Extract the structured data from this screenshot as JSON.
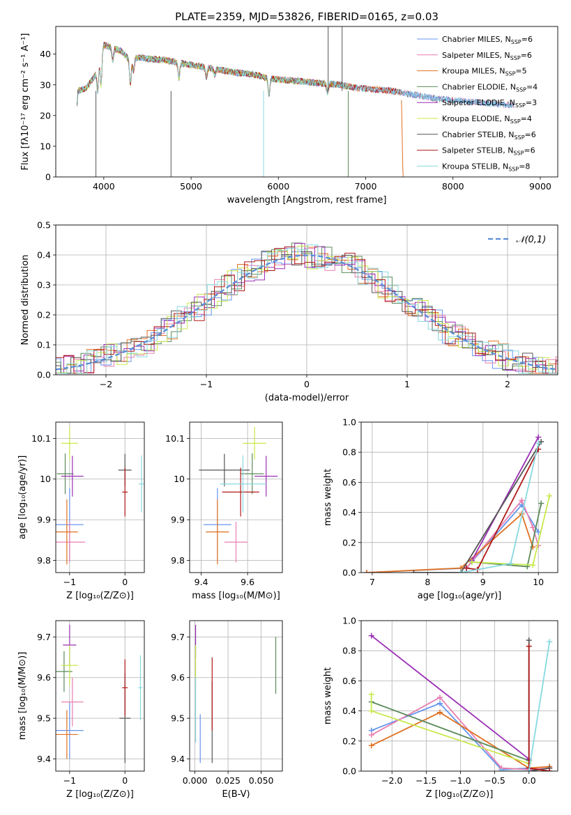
{
  "figure_title": "PLATE=2359, MJD=53826, FIBERID=0165, z=0.03",
  "colors": {
    "c1": "#6495ed",
    "c2": "#e87fb0",
    "c3": "#e07020",
    "c4": "#5a8a5a",
    "c5": "#9a2fb5",
    "c6": "#c8e84a",
    "c7": "#555555",
    "c8": "#b01818",
    "c9": "#88d8e0",
    "gauss": "#5a8fd8",
    "grid": "#b0b0b0"
  },
  "chart_data": [
    {
      "id": "spectrum",
      "type": "line",
      "xlabel": "wavelength [Angstrom, rest frame]",
      "ylabel": "Flux [fλ10⁻¹⁷ erg cm⁻² s⁻¹ A⁻¹]",
      "xlim": [
        3450,
        9200
      ],
      "ylim": [
        0,
        49
      ],
      "xticks": [
        4000,
        5000,
        6000,
        7000,
        8000,
        9000
      ],
      "yticks": [
        0,
        10,
        20,
        30,
        40
      ],
      "grid": false,
      "legend": "upper right",
      "series": [
        {
          "name": "Chabrier MILES, N",
          "sub": "SSP",
          "suffix": "=6"
        },
        {
          "name": "Salpeter MILES, N",
          "sub": "SSP",
          "suffix": "=6"
        },
        {
          "name": "Kroupa MILES, N",
          "sub": "SSP",
          "suffix": "=5"
        },
        {
          "name": "Chabrier ELODIE, N",
          "sub": "SSP",
          "suffix": "=4"
        },
        {
          "name": "Salpeter ELODIE, N",
          "sub": "SSP",
          "suffix": "=3"
        },
        {
          "name": "Kroupa ELODIE, N",
          "sub": "SSP",
          "suffix": "=4"
        },
        {
          "name": "Chabrier STELIB, N",
          "sub": "SSP",
          "suffix": "=6"
        },
        {
          "name": "Salpeter STELIB, N",
          "sub": "SSP",
          "suffix": "=6"
        },
        {
          "name": "Kroupa STELIB, N",
          "sub": "SSP",
          "suffix": "=8"
        }
      ],
      "continuum": [
        [
          3700,
          28
        ],
        [
          3800,
          29
        ],
        [
          3900,
          33
        ],
        [
          4000,
          43
        ],
        [
          4100,
          42
        ],
        [
          4200,
          41
        ],
        [
          4300,
          38
        ],
        [
          4400,
          39
        ],
        [
          4500,
          38.5
        ],
        [
          4700,
          38
        ],
        [
          4900,
          37
        ],
        [
          5100,
          36
        ],
        [
          5300,
          35
        ],
        [
          5500,
          34
        ],
        [
          5700,
          33.5
        ],
        [
          5900,
          32
        ],
        [
          6100,
          31.5
        ],
        [
          6300,
          31
        ],
        [
          6500,
          30.5
        ],
        [
          6700,
          30
        ],
        [
          6900,
          29
        ],
        [
          7100,
          28.5
        ],
        [
          7300,
          28
        ],
        [
          7400,
          27.5
        ],
        [
          7600,
          26.5
        ],
        [
          7800,
          25.5
        ],
        [
          8000,
          25
        ],
        [
          8200,
          24.5
        ],
        [
          8400,
          24
        ],
        [
          8600,
          23.5
        ],
        [
          8700,
          23.5
        ]
      ],
      "dips": [
        [
          3930,
          8
        ],
        [
          3968,
          10
        ],
        [
          4102,
          4
        ],
        [
          4305,
          8
        ],
        [
          4340,
          4
        ],
        [
          4861,
          5
        ],
        [
          5175,
          3
        ],
        [
          5270,
          2
        ],
        [
          5892,
          5
        ],
        [
          6563,
          3
        ]
      ]
    },
    {
      "id": "residuals",
      "type": "histogram",
      "xlabel": "(data-model)/error",
      "ylabel": "Normed distribution",
      "xlim": [
        -2.5,
        2.5
      ],
      "ylim": [
        0,
        0.5
      ],
      "xticks": [
        -2,
        -1,
        0,
        1,
        2
      ],
      "yticks": [
        0.0,
        0.1,
        0.2,
        0.3,
        0.4,
        0.5
      ],
      "grid": true,
      "legend": "upper right",
      "gauss_label": "𝒩(0,1)",
      "bin_width": 0.1,
      "envelope_sigma": 1.0
    },
    {
      "id": "age_vs_Z",
      "type": "scatter",
      "xlabel": "Z [log₁₀(Z/Z⊙)]",
      "ylabel": "age  [log₁₀(age/yr)]",
      "xlim": [
        -1.25,
        0.35
      ],
      "ylim": [
        9.77,
        10.14
      ],
      "xticks": [
        -1,
        0
      ],
      "yticks": [
        9.8,
        9.9,
        10.0,
        10.1
      ],
      "grid": true,
      "points": [
        {
          "x": -1.0,
          "y": 9.888,
          "xerr": 0.25,
          "yerr": 0.09,
          "c": "c1"
        },
        {
          "x": -1.0,
          "y": 9.845,
          "xerr": 0.28,
          "yerr": 0.05,
          "c": "c2"
        },
        {
          "x": -1.05,
          "y": 9.87,
          "xerr": 0.2,
          "yerr": 0.08,
          "c": "c3"
        },
        {
          "x": -1.08,
          "y": 10.013,
          "xerr": 0.15,
          "yerr": 0.05,
          "c": "c4"
        },
        {
          "x": -0.95,
          "y": 10.007,
          "xerr": 0.2,
          "yerr": 0.05,
          "c": "c5"
        },
        {
          "x": -1.0,
          "y": 10.088,
          "xerr": 0.15,
          "yerr": 0.04,
          "c": "c6"
        },
        {
          "x": 0.0,
          "y": 10.022,
          "xerr": 0.12,
          "yerr": 0.04,
          "c": "c7"
        },
        {
          "x": 0.0,
          "y": 9.968,
          "xerr": 0.05,
          "yerr": 0.06,
          "c": "c8"
        },
        {
          "x": 0.3,
          "y": 9.988,
          "xerr": 0.05,
          "yerr": 0.07,
          "c": "c9"
        }
      ]
    },
    {
      "id": "age_vs_mass",
      "type": "scatter",
      "xlabel": "mass [log₁₀(M/M⊙)]",
      "ylabel": "",
      "xlim": [
        9.35,
        9.75
      ],
      "ylim": [
        9.77,
        10.14
      ],
      "xticks": [
        9.4,
        9.6
      ],
      "yticks": [
        9.8,
        9.9,
        10.0,
        10.1
      ],
      "grid": true,
      "points": [
        {
          "x": 9.47,
          "y": 9.888,
          "xerr": 0.06,
          "yerr": 0.09,
          "c": "c1"
        },
        {
          "x": 9.55,
          "y": 9.845,
          "xerr": 0.05,
          "yerr": 0.05,
          "c": "c2"
        },
        {
          "x": 9.47,
          "y": 9.87,
          "xerr": 0.05,
          "yerr": 0.08,
          "c": "c3"
        },
        {
          "x": 9.62,
          "y": 10.013,
          "xerr": 0.05,
          "yerr": 0.05,
          "c": "c4"
        },
        {
          "x": 9.68,
          "y": 10.007,
          "xerr": 0.05,
          "yerr": 0.05,
          "c": "c5"
        },
        {
          "x": 9.63,
          "y": 10.088,
          "xerr": 0.05,
          "yerr": 0.04,
          "c": "c6"
        },
        {
          "x": 9.5,
          "y": 10.022,
          "xerr": 0.11,
          "yerr": 0.04,
          "c": "c7"
        },
        {
          "x": 9.57,
          "y": 9.968,
          "xerr": 0.08,
          "yerr": 0.06,
          "c": "c8"
        },
        {
          "x": 9.58,
          "y": 9.988,
          "xerr": 0.1,
          "yerr": 0.07,
          "c": "c9"
        }
      ]
    },
    {
      "id": "weight_vs_age",
      "type": "line",
      "xlabel": "age  [log₁₀(age/yr)]",
      "ylabel": "mass weight",
      "xlim": [
        6.8,
        10.35
      ],
      "ylim": [
        0,
        1.0
      ],
      "xticks": [
        7,
        8,
        9,
        10
      ],
      "yticks": [
        0.0,
        0.2,
        0.4,
        0.6,
        0.8,
        1.0
      ],
      "grid": true,
      "series": [
        {
          "c": "c1",
          "pts": [
            [
              6.9,
              0.0
            ],
            [
              8.7,
              0.03
            ],
            [
              9.7,
              0.45
            ],
            [
              10.0,
              0.27
            ]
          ]
        },
        {
          "c": "c2",
          "pts": [
            [
              8.7,
              0.03
            ],
            [
              9.7,
              0.48
            ],
            [
              9.9,
              0.3
            ],
            [
              10.0,
              0.18
            ]
          ]
        },
        {
          "c": "c3",
          "pts": [
            [
              6.9,
              0.0
            ],
            [
              8.6,
              0.03
            ],
            [
              9.7,
              0.39
            ],
            [
              9.9,
              0.17
            ]
          ]
        },
        {
          "c": "c4",
          "pts": [
            [
              8.8,
              0.07
            ],
            [
              9.8,
              0.04
            ],
            [
              10.05,
              0.46
            ]
          ]
        },
        {
          "c": "c5",
          "pts": [
            [
              8.8,
              0.08
            ],
            [
              10.0,
              0.9
            ]
          ]
        },
        {
          "c": "c6",
          "pts": [
            [
              8.8,
              0.07
            ],
            [
              9.9,
              0.05
            ],
            [
              10.2,
              0.51
            ]
          ]
        },
        {
          "c": "c7",
          "pts": [
            [
              7.75,
              0.0
            ],
            [
              8.6,
              0.0
            ],
            [
              10.05,
              0.87
            ]
          ]
        },
        {
          "c": "c8",
          "pts": [
            [
              8.7,
              0.03
            ],
            [
              8.9,
              0.02
            ],
            [
              10.0,
              0.82
            ]
          ]
        },
        {
          "c": "c9",
          "pts": [
            [
              8.6,
              0.0
            ],
            [
              9.5,
              0.06
            ],
            [
              10.0,
              0.86
            ]
          ]
        }
      ]
    },
    {
      "id": "mass_vs_Z",
      "type": "scatter",
      "xlabel": "Z [log₁₀(Z/Z⊙)]",
      "ylabel": "mass [log₁₀(M/M⊙)]",
      "xlim": [
        -1.25,
        0.35
      ],
      "ylim": [
        9.37,
        9.74
      ],
      "xticks": [
        -1,
        0
      ],
      "yticks": [
        9.4,
        9.5,
        9.6,
        9.7
      ],
      "grid": true,
      "points": [
        {
          "x": -1.0,
          "y": 9.47,
          "xerr": 0.25,
          "yerr": 0.07,
          "c": "c1"
        },
        {
          "x": -0.95,
          "y": 9.54,
          "xerr": 0.2,
          "yerr": 0.06,
          "c": "c2"
        },
        {
          "x": -1.05,
          "y": 9.46,
          "xerr": 0.2,
          "yerr": 0.06,
          "c": "c3"
        },
        {
          "x": -1.1,
          "y": 9.615,
          "xerr": 0.15,
          "yerr": 0.05,
          "c": "c4"
        },
        {
          "x": -1.0,
          "y": 9.68,
          "xerr": 0.12,
          "yerr": 0.05,
          "c": "c5"
        },
        {
          "x": -1.0,
          "y": 9.63,
          "xerr": 0.15,
          "yerr": 0.05,
          "c": "c6"
        },
        {
          "x": 0.0,
          "y": 9.5,
          "xerr": 0.1,
          "yerr": 0.11,
          "c": "c7"
        },
        {
          "x": 0.0,
          "y": 9.575,
          "xerr": 0.05,
          "yerr": 0.07,
          "c": "c8"
        },
        {
          "x": 0.28,
          "y": 9.575,
          "xerr": 0.04,
          "yerr": 0.08,
          "c": "c9"
        }
      ]
    },
    {
      "id": "mass_vs_ebv",
      "type": "scatter",
      "xlabel": "E(B-V)",
      "ylabel": "",
      "xlim": [
        -0.004,
        0.066
      ],
      "ylim": [
        9.37,
        9.74
      ],
      "xticks": [
        0.0,
        0.025,
        0.05
      ],
      "xticklabels": [
        "0.000",
        "0.025",
        "0.050"
      ],
      "yticks": [
        9.4,
        9.5,
        9.6,
        9.7
      ],
      "grid": true,
      "points": [
        {
          "x": 0.004,
          "y": 9.45,
          "xerr": 0,
          "yerr": 0.06,
          "c": "c1"
        },
        {
          "x": 0.0005,
          "y": 9.69,
          "xerr": 0,
          "yerr": 0.04,
          "c": "c5"
        },
        {
          "x": 0.0005,
          "y": 9.63,
          "xerr": 0,
          "yerr": 0.05,
          "c": "c6"
        },
        {
          "x": 0.0005,
          "y": 9.52,
          "xerr": 0,
          "yerr": 0.08,
          "c": "c9"
        },
        {
          "x": 0.013,
          "y": 9.49,
          "xerr": 0,
          "yerr": 0.1,
          "c": "c7"
        },
        {
          "x": 0.013,
          "y": 9.56,
          "xerr": 0,
          "yerr": 0.09,
          "c": "c8"
        },
        {
          "x": 0.061,
          "y": 9.63,
          "xerr": 0,
          "yerr": 0.07,
          "c": "c4"
        }
      ]
    },
    {
      "id": "weight_vs_Z",
      "type": "line",
      "xlabel": "Z [log₁₀(Z/Z⊙)]",
      "ylabel": "mass weight",
      "xlim": [
        -2.45,
        0.42
      ],
      "ylim": [
        0,
        1.0
      ],
      "xticks": [
        -2.0,
        -1.5,
        -1.0,
        -0.5,
        0.0
      ],
      "xticklabels": [
        "−2.0",
        "−1.5",
        "−1.0",
        "−0.5",
        "0.0"
      ],
      "yticks": [
        0.0,
        0.2,
        0.4,
        0.6,
        0.8,
        1.0
      ],
      "grid": true,
      "series": [
        {
          "c": "c1",
          "pts": [
            [
              -2.3,
              0.27
            ],
            [
              -1.3,
              0.45
            ],
            [
              -0.4,
              0.01
            ],
            [
              0.0,
              0.02
            ]
          ]
        },
        {
          "c": "c2",
          "pts": [
            [
              -2.3,
              0.24
            ],
            [
              -1.3,
              0.49
            ],
            [
              -0.4,
              0.02
            ],
            [
              0.0,
              0.01
            ],
            [
              0.3,
              0.02
            ]
          ]
        },
        {
          "c": "c3",
          "pts": [
            [
              -2.3,
              0.17
            ],
            [
              -1.3,
              0.39
            ],
            [
              0.0,
              0.02
            ],
            [
              0.3,
              0.03
            ]
          ]
        },
        {
          "c": "c4",
          "pts": [
            [
              -2.3,
              0.46
            ],
            [
              0.0,
              0.07
            ]
          ]
        },
        {
          "c": "c5",
          "pts": [
            [
              -2.3,
              0.9
            ],
            [
              0.0,
              0.08
            ]
          ]
        },
        {
          "c": "c6",
          "pts": [
            [
              -2.3,
              0.51
            ],
            [
              -2.3,
              0.4
            ],
            [
              0.0,
              0.05
            ]
          ]
        },
        {
          "c": "c7",
          "pts": [
            [
              0.0,
              0.87
            ],
            [
              0.0,
              0.0
            ],
            [
              0.3,
              0.02
            ]
          ]
        },
        {
          "c": "c8",
          "pts": [
            [
              0.0,
              0.83
            ],
            [
              0.0,
              0.02
            ],
            [
              0.3,
              0.0
            ]
          ]
        },
        {
          "c": "c9",
          "pts": [
            [
              -0.4,
              0.0
            ],
            [
              0.0,
              0.0
            ],
            [
              0.3,
              0.86
            ]
          ]
        }
      ]
    }
  ]
}
